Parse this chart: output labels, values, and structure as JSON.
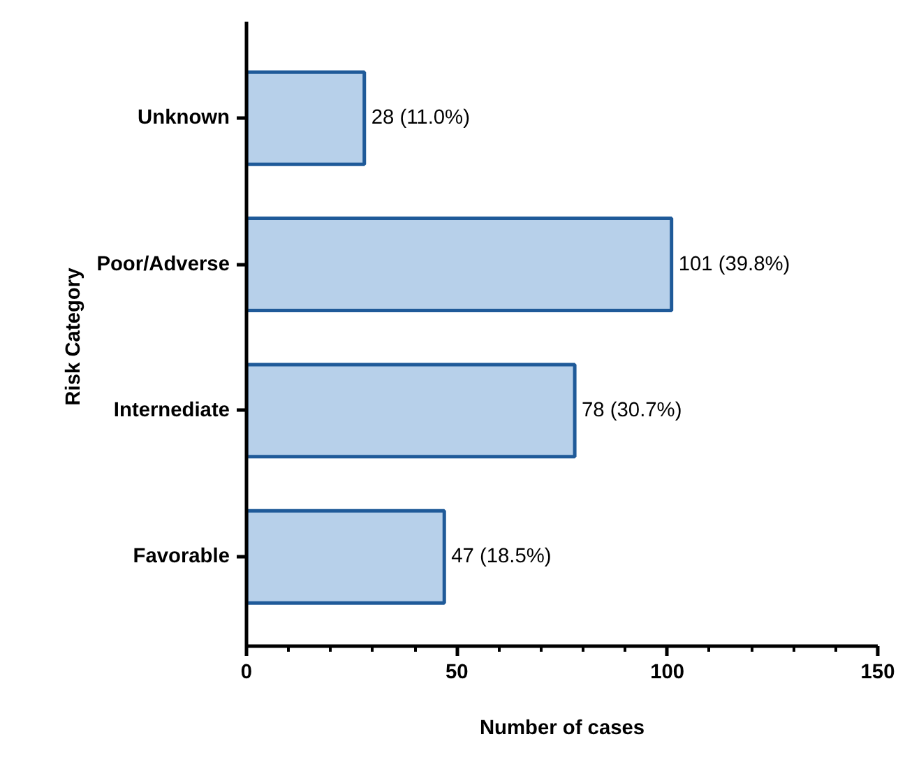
{
  "chart_data": {
    "type": "bar",
    "orientation": "horizontal",
    "xlabel": "Number of cases",
    "ylabel": "Risk  Category",
    "categories": [
      "Unknown",
      "Poor/Adverse",
      "Internediate",
      "Favorable"
    ],
    "values": [
      28,
      101,
      78,
      47
    ],
    "color": "#b7d0ea",
    "value_labels": [
      "28  (11.0%)",
      "101  (39.8%)",
      "78 (30.7%)",
      "47  (18.5%)"
    ],
    "xlim": [
      0,
      150
    ],
    "xticks": [
      0,
      {
        "value": 10,
        "label": null
      },
      {
        "value": 20,
        "label": null
      },
      {
        "value": 30,
        "label": null
      },
      {
        "value": 40,
        "label": null
      },
      50,
      {
        "value": 60,
        "label": null
      },
      {
        "value": 70,
        "label": null
      },
      {
        "value": 80,
        "label": null
      },
      {
        "value": 90,
        "label": null
      },
      100,
      {
        "value": 110,
        "label": null
      },
      {
        "value": 120,
        "label": null
      },
      {
        "value": 130,
        "label": null
      },
      {
        "value": 140,
        "label": null
      },
      150
    ],
    "grid": false
  }
}
